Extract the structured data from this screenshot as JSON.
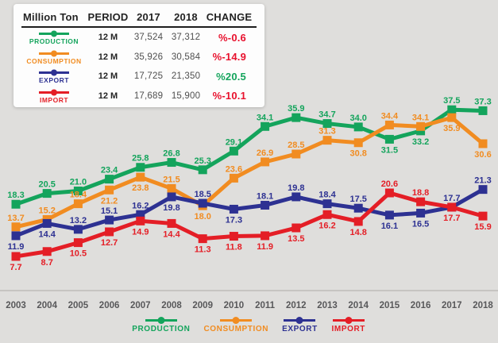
{
  "colors": {
    "background": "#dfdedc",
    "panel": "#fdfdfd",
    "axis_line": "#c6c4c1",
    "year_label": "#58585a",
    "header_text": "#232323",
    "value_text": "#4f4f4f",
    "negative": "#e8112d",
    "positive": "#14a45c",
    "production": "#14a45c",
    "consumption": "#f18c21",
    "export": "#2d3192",
    "import": "#e41e26"
  },
  "summary_table": {
    "headers": [
      "Million Ton",
      "PERIOD",
      "2017",
      "2018",
      "CHANGE"
    ],
    "rows": [
      {
        "series": "PRODUCTION",
        "color": "#14a45c",
        "period": "12 M",
        "y2017": "37,524",
        "y2018": "37,312",
        "change": "%-0.6",
        "change_color": "#e8112d"
      },
      {
        "series": "CONSUMPTION",
        "color": "#f18c21",
        "period": "12 M",
        "y2017": "35,926",
        "y2018": "30,584",
        "change": "%-14.9",
        "change_color": "#e8112d"
      },
      {
        "series": "EXPORT",
        "color": "#2d3192",
        "period": "12 M",
        "y2017": "17,725",
        "y2018": "21,350",
        "change": "%20.5",
        "change_color": "#14a45c"
      },
      {
        "series": "IMPORT",
        "color": "#e41e26",
        "period": "12 M",
        "y2017": "17,689",
        "y2018": "15,900",
        "change": "%-10.1",
        "change_color": "#e8112d"
      }
    ]
  },
  "chart_data": {
    "type": "line",
    "unit": "Million Ton",
    "categories": [
      "2003",
      "2004",
      "2005",
      "2006",
      "2007",
      "2008",
      "2009",
      "2010",
      "2011",
      "2012",
      "2013",
      "2014",
      "2015",
      "2016",
      "2017",
      "2018"
    ],
    "series": [
      {
        "name": "PRODUCTION",
        "color": "#14a45c",
        "values": [
          18.3,
          20.5,
          21.0,
          23.4,
          25.8,
          26.8,
          25.3,
          29.1,
          34.1,
          35.9,
          34.7,
          34.0,
          31.5,
          33.2,
          37.5,
          37.3
        ],
        "label_pos": [
          "a",
          "a",
          "a",
          "a",
          "a",
          "a",
          "a",
          "a",
          "a",
          "a",
          "a",
          "a",
          "b",
          "b",
          "a",
          "a"
        ]
      },
      {
        "name": "CONSUMPTION",
        "color": "#f18c21",
        "values": [
          13.7,
          15.2,
          18.4,
          21.2,
          23.8,
          21.5,
          18.0,
          23.6,
          26.9,
          28.5,
          31.3,
          30.8,
          34.4,
          34.1,
          35.9,
          30.6
        ],
        "label_pos": [
          "a",
          "a",
          "a",
          "b",
          "b",
          "a",
          "b",
          "a",
          "a",
          "a",
          "a",
          "b",
          "a",
          "a",
          "b",
          "b"
        ]
      },
      {
        "name": "EXPORT",
        "color": "#2d3192",
        "values": [
          11.9,
          14.4,
          13.2,
          15.1,
          16.2,
          19.8,
          18.5,
          17.3,
          18.1,
          19.8,
          18.4,
          17.5,
          16.1,
          16.5,
          17.7,
          21.3
        ],
        "label_pos": [
          "b",
          "b",
          "a",
          "a",
          "a",
          "b",
          "a",
          "b",
          "a",
          "a",
          "a",
          "a",
          "b",
          "b",
          "a",
          "a"
        ]
      },
      {
        "name": "IMPORT",
        "color": "#e41e26",
        "values": [
          7.7,
          8.7,
          10.5,
          12.7,
          14.9,
          14.4,
          11.3,
          11.8,
          11.9,
          13.5,
          16.2,
          14.8,
          20.6,
          18.8,
          17.7,
          15.9
        ],
        "label_pos": [
          "b",
          "b",
          "b",
          "b",
          "b",
          "b",
          "b",
          "b",
          "b",
          "b",
          "b",
          "b",
          "a",
          "a",
          "b",
          "b"
        ]
      }
    ],
    "ylim": [
      0,
      40
    ],
    "grid": false,
    "y_axis_visible": false,
    "legend_position": "bottom"
  },
  "legend": {
    "items": [
      {
        "label": "PRODUCTION",
        "color": "#14a45c"
      },
      {
        "label": "CONSUMPTION",
        "color": "#f18c21"
      },
      {
        "label": "EXPORT",
        "color": "#2d3192"
      },
      {
        "label": "IMPORT",
        "color": "#e41e26"
      }
    ]
  }
}
